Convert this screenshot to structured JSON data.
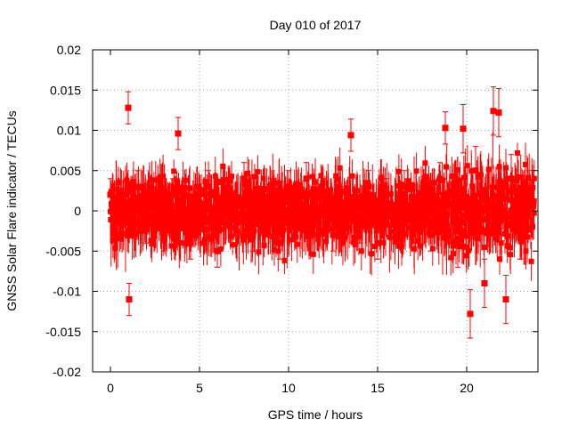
{
  "chart_data": {
    "type": "scatter",
    "title": "Day 010 of 2017",
    "xlabel": "GPS time / hours",
    "ylabel": "GNSS Solar Flare indicator / TECUs",
    "xlim": [
      -1,
      24
    ],
    "ylim": [
      -0.02,
      0.02
    ],
    "xticks": [
      "0",
      "5",
      "10",
      "15",
      "20"
    ],
    "yticks": [
      "-0.02",
      "-0.015",
      "-0.01",
      "-0.005",
      "0",
      "0.005",
      "0.01",
      "0.015",
      "0.02"
    ],
    "grid": true,
    "marker": "square",
    "color": "#ff0000",
    "error_bars": true,
    "series": [
      {
        "x": [
          0.0,
          0.5,
          1.0,
          1.05,
          1.5,
          2.0,
          2.5,
          3.0,
          3.5,
          3.8,
          4.5,
          5.0,
          5.5,
          6.0,
          6.5,
          7.0,
          7.5,
          8.0,
          8.5,
          9.0,
          9.5,
          10.0,
          10.5,
          11.0,
          11.5,
          12.0,
          12.5,
          13.0,
          13.5,
          14.0,
          14.5,
          15.0,
          15.5,
          16.0,
          16.5,
          17.0,
          17.5,
          18.0,
          18.5,
          18.8,
          19.5,
          19.8,
          20.2,
          20.5,
          21.0,
          21.5,
          21.8,
          22.2,
          22.5,
          23.0,
          23.5
        ],
        "y": [
          0.002,
          -0.001,
          0.0128,
          -0.011,
          0.003,
          -0.002,
          0.001,
          -0.003,
          0.002,
          0.0096,
          -0.004,
          0.001,
          0.003,
          -0.005,
          0.002,
          -0.001,
          0.004,
          -0.003,
          0.001,
          0.002,
          -0.004,
          0.003,
          -0.002,
          0.004,
          -0.001,
          0.002,
          -0.003,
          0.001,
          0.0094,
          -0.002,
          0.003,
          -0.004,
          0.002,
          -0.001,
          0.003,
          -0.002,
          0.001,
          -0.003,
          0.004,
          0.0103,
          -0.004,
          0.0102,
          -0.0128,
          0.005,
          -0.009,
          0.0124,
          0.0122,
          -0.011,
          0.004,
          -0.003,
          0.002
        ],
        "yerr": [
          0.002,
          0.002,
          0.002,
          0.002,
          0.002,
          0.002,
          0.002,
          0.002,
          0.002,
          0.002,
          0.002,
          0.002,
          0.002,
          0.002,
          0.002,
          0.002,
          0.002,
          0.002,
          0.002,
          0.002,
          0.002,
          0.002,
          0.002,
          0.002,
          0.002,
          0.002,
          0.002,
          0.002,
          0.002,
          0.002,
          0.002,
          0.002,
          0.002,
          0.002,
          0.002,
          0.002,
          0.002,
          0.002,
          0.002,
          0.002,
          0.003,
          0.003,
          0.003,
          0.003,
          0.003,
          0.003,
          0.003,
          0.003,
          0.003,
          0.003,
          0.003
        ]
      }
    ]
  }
}
